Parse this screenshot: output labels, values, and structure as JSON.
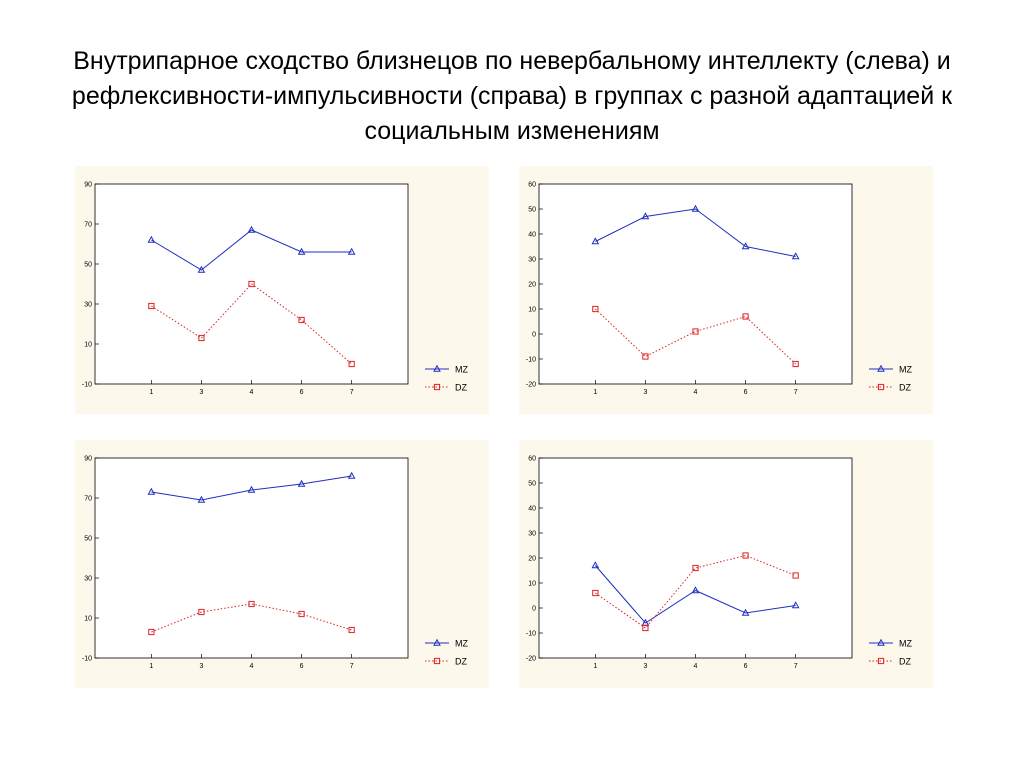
{
  "slide": {
    "title": "Внутрипарное сходство близнецов по невербальному интеллекту (слева) и рефлексивности-импульсивности (справа) в группах с разной адаптацией к социальным изменениям"
  },
  "colors": {
    "mz": "#1f2fc0",
    "dz": "#e02020",
    "panel_bg": "#fcf8ec"
  },
  "chart_data": [
    {
      "type": "line",
      "title": "",
      "categories": [
        "1",
        "3",
        "4",
        "6",
        "7"
      ],
      "ylim": [
        -10,
        90
      ],
      "yticks": [
        -10,
        10,
        30,
        50,
        70,
        90
      ],
      "legend": "right",
      "series": [
        {
          "name": "MZ",
          "marker": "triangle",
          "line": "solid",
          "values": [
            62,
            47,
            67,
            56,
            56
          ]
        },
        {
          "name": "DZ",
          "marker": "square",
          "line": "dotted",
          "values": [
            29,
            13,
            40,
            22,
            0
          ]
        }
      ]
    },
    {
      "type": "line",
      "title": "",
      "categories": [
        "1",
        "3",
        "4",
        "6",
        "7"
      ],
      "ylim": [
        -20,
        60
      ],
      "yticks": [
        -20,
        -10,
        0,
        10,
        20,
        30,
        40,
        50,
        60
      ],
      "legend": "right",
      "series": [
        {
          "name": "MZ",
          "marker": "triangle",
          "line": "solid",
          "values": [
            37,
            47,
            50,
            35,
            31
          ]
        },
        {
          "name": "DZ",
          "marker": "square",
          "line": "dotted",
          "values": [
            10,
            -9,
            1,
            7,
            -12
          ]
        }
      ]
    },
    {
      "type": "line",
      "title": "",
      "categories": [
        "1",
        "3",
        "4",
        "6",
        "7"
      ],
      "ylim": [
        -10,
        90
      ],
      "yticks": [
        -10,
        10,
        30,
        50,
        70,
        90
      ],
      "legend": "right",
      "series": [
        {
          "name": "MZ",
          "marker": "triangle",
          "line": "solid",
          "values": [
            73,
            69,
            74,
            77,
            81
          ]
        },
        {
          "name": "DZ",
          "marker": "square",
          "line": "dotted",
          "values": [
            3,
            13,
            17,
            12,
            4
          ]
        }
      ]
    },
    {
      "type": "line",
      "title": "",
      "categories": [
        "1",
        "3",
        "4",
        "6",
        "7"
      ],
      "ylim": [
        -20,
        60
      ],
      "yticks": [
        -20,
        -10,
        0,
        10,
        20,
        30,
        40,
        50,
        60
      ],
      "legend": "right",
      "series": [
        {
          "name": "MZ",
          "marker": "triangle",
          "line": "solid",
          "values": [
            17,
            -6,
            7,
            -2,
            1
          ]
        },
        {
          "name": "DZ",
          "marker": "square",
          "line": "dotted",
          "values": [
            6,
            -8,
            16,
            21,
            13
          ]
        }
      ]
    }
  ]
}
